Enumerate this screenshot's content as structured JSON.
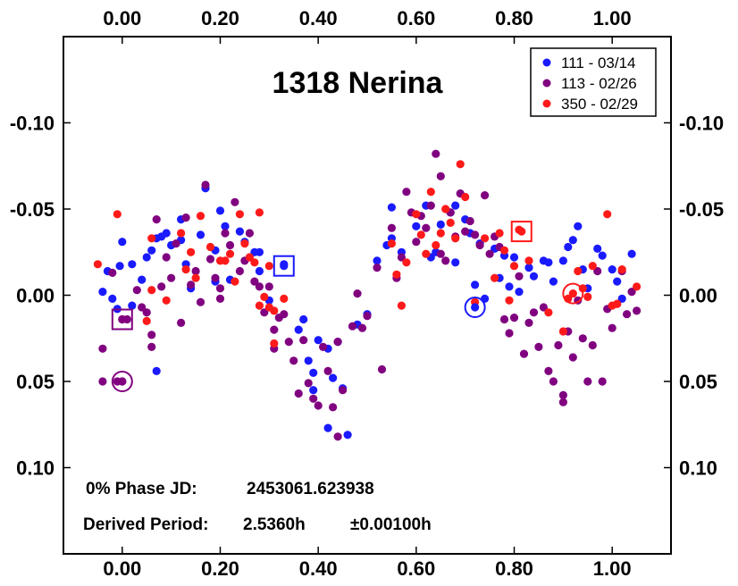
{
  "chart_data": {
    "type": "scatter",
    "title": "1318 Nerina",
    "xlabel": "",
    "ylabel": "",
    "xlim": [
      -0.12,
      1.12
    ],
    "ylim": [
      -0.15,
      0.15
    ],
    "y_inverted": true,
    "x_ticks": [
      0.0,
      0.2,
      0.4,
      0.6,
      0.8,
      1.0
    ],
    "x_tick_labels": [
      "0.00",
      "0.20",
      "0.40",
      "0.60",
      "0.80",
      "1.00"
    ],
    "y_ticks": [
      -0.1,
      -0.05,
      0.0,
      0.05,
      0.1
    ],
    "y_tick_labels": [
      "-0.10",
      "-0.05",
      "0.00",
      "0.05",
      "0.10"
    ],
    "grid": false,
    "legend_position": "top-right",
    "annotations": [
      {
        "label": "0% Phase JD:",
        "value": "2453061.623938"
      },
      {
        "label": "Derived Period:",
        "value": "2.5360h",
        "uncertainty": "±0.00100h"
      }
    ],
    "series": [
      {
        "name": "111 - 03/14",
        "color": "#1a1aff",
        "points": [
          [
            -0.04,
            -0.002
          ],
          [
            -0.03,
            -0.014
          ],
          [
            -0.02,
            0.002
          ],
          [
            -0.01,
            0.008
          ],
          [
            -0.005,
            -0.017
          ],
          [
            0.0,
            -0.031
          ],
          [
            0.02,
            -0.018
          ],
          [
            0.02,
            0.006
          ],
          [
            0.04,
            -0.009
          ],
          [
            0.05,
            -0.022
          ],
          [
            0.06,
            -0.026
          ],
          [
            0.07,
            -0.033
          ],
          [
            0.07,
            0.044
          ],
          [
            0.08,
            -0.034
          ],
          [
            0.09,
            -0.036
          ],
          [
            0.1,
            -0.029
          ],
          [
            0.12,
            -0.044
          ],
          [
            0.12,
            -0.032
          ],
          [
            0.13,
            -0.018
          ],
          [
            0.14,
            -0.004
          ],
          [
            0.16,
            -0.035
          ],
          [
            0.17,
            -0.062
          ],
          [
            0.19,
            -0.026
          ],
          [
            0.19,
            -0.008
          ],
          [
            0.2,
            -0.049
          ],
          [
            0.21,
            -0.04
          ],
          [
            0.22,
            -0.009
          ],
          [
            0.24,
            -0.037
          ],
          [
            0.25,
            -0.031
          ],
          [
            0.26,
            -0.022
          ],
          [
            0.27,
            -0.025
          ],
          [
            0.28,
            -0.014
          ],
          [
            0.28,
            -0.025
          ],
          [
            0.3,
            0.003
          ],
          [
            0.33,
            -0.018
          ],
          [
            0.36,
            0.02
          ],
          [
            0.37,
            0.014
          ],
          [
            0.38,
            0.038
          ],
          [
            0.39,
            0.045
          ],
          [
            0.39,
            0.055
          ],
          [
            0.4,
            0.026
          ],
          [
            0.42,
            0.031
          ],
          [
            0.42,
            0.077
          ],
          [
            0.43,
            0.048
          ],
          [
            0.44,
            0.027
          ],
          [
            0.45,
            0.054
          ],
          [
            0.46,
            0.081
          ],
          [
            0.48,
            0.017
          ],
          [
            0.5,
            0.011
          ],
          [
            0.52,
            -0.02
          ],
          [
            0.54,
            -0.029
          ],
          [
            0.55,
            -0.033
          ],
          [
            0.55,
            -0.051
          ],
          [
            0.57,
            -0.025
          ],
          [
            0.6,
            -0.04
          ],
          [
            0.62,
            -0.052
          ],
          [
            0.63,
            -0.022
          ],
          [
            0.64,
            -0.025
          ],
          [
            0.65,
            -0.041
          ],
          [
            0.67,
            -0.048
          ],
          [
            0.68,
            -0.019
          ],
          [
            0.68,
            -0.052
          ],
          [
            0.7,
            -0.044
          ],
          [
            0.71,
            -0.036
          ],
          [
            0.72,
            -0.006
          ],
          [
            0.73,
            -0.03
          ],
          [
            0.74,
            0.002
          ],
          [
            0.76,
            -0.027
          ],
          [
            0.77,
            -0.01
          ],
          [
            0.78,
            -0.023
          ],
          [
            0.79,
            -0.005
          ],
          [
            0.8,
            -0.022
          ],
          [
            0.81,
            -0.002
          ],
          [
            0.83,
            -0.016
          ],
          [
            0.84,
            -0.011
          ],
          [
            0.86,
            -0.02
          ],
          [
            0.87,
            -0.019
          ],
          [
            0.88,
            -0.008
          ],
          [
            0.9,
            -0.02
          ],
          [
            0.91,
            -0.028
          ],
          [
            0.92,
            -0.032
          ],
          [
            0.93,
            -0.04
          ],
          [
            0.94,
            -0.015
          ],
          [
            0.95,
            -0.004
          ],
          [
            0.97,
            -0.027
          ],
          [
            0.98,
            -0.023
          ],
          [
            1.0,
            -0.015
          ],
          [
            1.01,
            -0.008
          ],
          [
            1.02,
            0.002
          ],
          [
            1.04,
            -0.024
          ]
        ]
      },
      {
        "name": "113 - 02/26",
        "color": "#800080",
        "points": [
          [
            -0.04,
            0.031
          ],
          [
            -0.04,
            0.05
          ],
          [
            -0.02,
            -0.013
          ],
          [
            -0.01,
            0.05
          ],
          [
            0.0,
            0.05
          ],
          [
            0.0,
            0.014
          ],
          [
            0.01,
            0.014
          ],
          [
            0.03,
            -0.003
          ],
          [
            0.04,
            0.007
          ],
          [
            0.05,
            0.01
          ],
          [
            0.06,
            0.023
          ],
          [
            0.06,
            0.03
          ],
          [
            0.07,
            -0.044
          ],
          [
            0.08,
            -0.005
          ],
          [
            0.09,
            -0.022
          ],
          [
            0.1,
            -0.01
          ],
          [
            0.11,
            -0.03
          ],
          [
            0.12,
            0.016
          ],
          [
            0.13,
            -0.045
          ],
          [
            0.14,
            -0.006
          ],
          [
            0.15,
            -0.014
          ],
          [
            0.16,
            0.004
          ],
          [
            0.17,
            -0.064
          ],
          [
            0.18,
            -0.021
          ],
          [
            0.19,
            -0.01
          ],
          [
            0.2,
            -0.004
          ],
          [
            0.2,
            0.002
          ],
          [
            0.21,
            -0.036
          ],
          [
            0.22,
            -0.029
          ],
          [
            0.23,
            -0.054
          ],
          [
            0.24,
            -0.014
          ],
          [
            0.25,
            -0.02
          ],
          [
            0.26,
            -0.036
          ],
          [
            0.27,
            -0.008
          ],
          [
            0.28,
            -0.005
          ],
          [
            0.29,
            0.01
          ],
          [
            0.3,
            -0.005
          ],
          [
            0.31,
            0.02
          ],
          [
            0.31,
            0.031
          ],
          [
            0.32,
            0.013
          ],
          [
            0.33,
            0.011
          ],
          [
            0.34,
            0.027
          ],
          [
            0.35,
            0.038
          ],
          [
            0.36,
            0.057
          ],
          [
            0.37,
            0.026
          ],
          [
            0.38,
            0.051
          ],
          [
            0.39,
            0.06
          ],
          [
            0.4,
            0.064
          ],
          [
            0.41,
            0.03
          ],
          [
            0.42,
            0.044
          ],
          [
            0.43,
            0.065
          ],
          [
            0.44,
            0.027
          ],
          [
            0.44,
            0.082
          ],
          [
            0.45,
            0.055
          ],
          [
            0.47,
            0.018
          ],
          [
            0.48,
            -0.001
          ],
          [
            0.49,
            0.019
          ],
          [
            0.5,
            0.012
          ],
          [
            0.52,
            -0.016
          ],
          [
            0.53,
            0.043
          ],
          [
            0.55,
            -0.039
          ],
          [
            0.56,
            -0.01
          ],
          [
            0.57,
            -0.022
          ],
          [
            0.58,
            -0.06
          ],
          [
            0.59,
            -0.048
          ],
          [
            0.6,
            -0.031
          ],
          [
            0.61,
            -0.046
          ],
          [
            0.62,
            -0.039
          ],
          [
            0.63,
            -0.052
          ],
          [
            0.64,
            -0.082
          ],
          [
            0.65,
            -0.024
          ],
          [
            0.65,
            -0.069
          ],
          [
            0.66,
            -0.02
          ],
          [
            0.67,
            -0.048
          ],
          [
            0.68,
            -0.034
          ],
          [
            0.69,
            -0.059
          ],
          [
            0.7,
            -0.037
          ],
          [
            0.71,
            -0.043
          ],
          [
            0.72,
            -0.035
          ],
          [
            0.73,
            -0.029
          ],
          [
            0.74,
            -0.058
          ],
          [
            0.75,
            -0.024
          ],
          [
            0.76,
            -0.034
          ],
          [
            0.77,
            -0.028
          ],
          [
            0.78,
            0.014
          ],
          [
            0.79,
            0.022
          ],
          [
            0.8,
            0.013
          ],
          [
            0.81,
            -0.011
          ],
          [
            0.82,
            0.034
          ],
          [
            0.83,
            0.016
          ],
          [
            0.84,
            0.01
          ],
          [
            0.85,
            0.03
          ],
          [
            0.86,
            0.007
          ],
          [
            0.87,
            0.044
          ],
          [
            0.88,
            0.05
          ],
          [
            0.89,
            0.029
          ],
          [
            0.9,
            0.058
          ],
          [
            0.9,
            0.062
          ],
          [
            0.91,
            0.021
          ],
          [
            0.92,
            0.036
          ],
          [
            0.93,
            0.003
          ],
          [
            0.94,
            0.025
          ],
          [
            0.95,
            0.05
          ],
          [
            0.96,
            0.029
          ],
          [
            0.97,
            -0.014
          ],
          [
            0.98,
            0.05
          ],
          [
            0.99,
            0.008
          ],
          [
            1.0,
            0.019
          ],
          [
            1.01,
            0.005
          ],
          [
            1.02,
            -0.014
          ],
          [
            1.03,
            0.011
          ],
          [
            1.04,
            -0.002
          ],
          [
            1.05,
            0.009
          ]
        ]
      },
      {
        "name": "350 - 02/29",
        "color": "#ff1a1a",
        "points": [
          [
            -0.05,
            -0.018
          ],
          [
            -0.01,
            -0.047
          ],
          [
            0.05,
            0.015
          ],
          [
            0.06,
            -0.033
          ],
          [
            0.06,
            -0.003
          ],
          [
            0.09,
            0.003
          ],
          [
            0.12,
            -0.036
          ],
          [
            0.13,
            -0.015
          ],
          [
            0.14,
            -0.025
          ],
          [
            0.15,
            -0.01
          ],
          [
            0.16,
            -0.046
          ],
          [
            0.18,
            -0.028
          ],
          [
            0.2,
            -0.02
          ],
          [
            0.21,
            -0.02
          ],
          [
            0.22,
            -0.024
          ],
          [
            0.23,
            -0.008
          ],
          [
            0.24,
            -0.047
          ],
          [
            0.25,
            -0.03
          ],
          [
            0.26,
            -0.022
          ],
          [
            0.27,
            -0.019
          ],
          [
            0.28,
            -0.048
          ],
          [
            0.28,
            0.006
          ],
          [
            0.29,
            0.001
          ],
          [
            0.3,
            -0.017
          ],
          [
            0.3,
            0.007
          ],
          [
            0.31,
            0.009
          ],
          [
            0.31,
            0.028
          ],
          [
            0.33,
            0.002
          ],
          [
            0.55,
            -0.03
          ],
          [
            0.56,
            -0.012
          ],
          [
            0.57,
            0.006
          ],
          [
            0.58,
            -0.019
          ],
          [
            0.6,
            -0.047
          ],
          [
            0.61,
            -0.035
          ],
          [
            0.62,
            -0.024
          ],
          [
            0.63,
            -0.06
          ],
          [
            0.64,
            -0.029
          ],
          [
            0.65,
            -0.036
          ],
          [
            0.66,
            -0.05
          ],
          [
            0.67,
            -0.042
          ],
          [
            0.68,
            -0.033
          ],
          [
            0.69,
            -0.076
          ],
          [
            0.7,
            -0.057
          ],
          [
            0.72,
            0.004
          ],
          [
            0.74,
            -0.033
          ],
          [
            0.76,
            -0.01
          ],
          [
            0.77,
            -0.036
          ],
          [
            0.78,
            -0.026
          ],
          [
            0.79,
            0.003
          ],
          [
            0.8,
            -0.017
          ],
          [
            0.81,
            -0.038
          ],
          [
            0.83,
            -0.02
          ],
          [
            0.87,
            0.01
          ],
          [
            0.9,
            0.021
          ],
          [
            0.91,
            0.002
          ],
          [
            0.93,
            -0.014
          ],
          [
            0.94,
            -0.004
          ],
          [
            0.95,
            0.001
          ],
          [
            0.96,
            -0.017
          ],
          [
            0.99,
            -0.047
          ],
          [
            1.0,
            0.006
          ],
          [
            1.01,
            0.005
          ],
          [
            1.02,
            -0.015
          ],
          [
            1.05,
            -0.005
          ]
        ]
      }
    ],
    "highlighted_points": [
      {
        "series": "113 - 02/26",
        "marker": "square",
        "x": 0.0,
        "y": 0.014
      },
      {
        "series": "113 - 02/26",
        "marker": "circle",
        "x": 0.0,
        "y": 0.05
      },
      {
        "series": "111 - 03/14",
        "marker": "square",
        "x": 0.33,
        "y": -0.017
      },
      {
        "series": "111 - 03/14",
        "marker": "circle",
        "x": 0.72,
        "y": 0.007
      },
      {
        "series": "350 - 02/29",
        "marker": "square",
        "x": 0.815,
        "y": -0.037
      },
      {
        "series": "350 - 02/29",
        "marker": "circle",
        "x": 0.92,
        "y": -0.001
      }
    ]
  }
}
